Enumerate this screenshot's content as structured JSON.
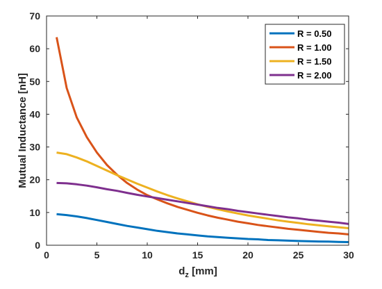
{
  "chart_data": {
    "type": "line",
    "xlabel_main": "d",
    "xlabel_sub": "z",
    "xlabel_unit": " [mm]",
    "ylabel": "Mutual Inductance [nH]",
    "xlim": [
      0,
      30
    ],
    "ylim": [
      0,
      70
    ],
    "xticks": [
      0,
      5,
      10,
      15,
      20,
      25,
      30
    ],
    "yticks": [
      0,
      10,
      20,
      30,
      40,
      50,
      60,
      70
    ],
    "grid": false,
    "legend_position": "top-right",
    "x": [
      1,
      2,
      3,
      4,
      5,
      6,
      7,
      8,
      9,
      10,
      11,
      12,
      13,
      14,
      15,
      16,
      17,
      18,
      19,
      20,
      21,
      22,
      23,
      24,
      25,
      26,
      27,
      28,
      29,
      30
    ],
    "series": [
      {
        "name": "R = 0.50",
        "color": "#0072BD",
        "values": [
          9.5,
          9.2,
          8.8,
          8.3,
          7.7,
          7.1,
          6.5,
          5.9,
          5.4,
          4.9,
          4.4,
          4.0,
          3.6,
          3.3,
          3.0,
          2.7,
          2.5,
          2.3,
          2.1,
          1.9,
          1.8,
          1.6,
          1.5,
          1.4,
          1.3,
          1.2,
          1.15,
          1.1,
          1.0,
          0.95
        ]
      },
      {
        "name": "R = 1.00",
        "color": "#D95319",
        "values": [
          63.5,
          48.0,
          39.0,
          33.0,
          28.3,
          24.5,
          21.5,
          19.0,
          17.0,
          15.3,
          14.0,
          12.8,
          11.7,
          10.8,
          9.9,
          9.1,
          8.4,
          7.8,
          7.2,
          6.7,
          6.2,
          5.8,
          5.4,
          5.0,
          4.7,
          4.4,
          4.1,
          3.8,
          3.6,
          3.3
        ]
      },
      {
        "name": "R = 1.50",
        "color": "#EDB120",
        "values": [
          28.3,
          27.8,
          26.8,
          25.6,
          24.2,
          22.8,
          21.4,
          20.1,
          18.8,
          17.6,
          16.4,
          15.3,
          14.3,
          13.4,
          12.5,
          11.7,
          11.0,
          10.3,
          9.7,
          9.1,
          8.6,
          8.1,
          7.6,
          7.2,
          6.8,
          6.4,
          6.1,
          5.8,
          5.5,
          5.2
        ]
      },
      {
        "name": "R = 2.00",
        "color": "#7E2F8E",
        "values": [
          19.0,
          18.9,
          18.6,
          18.2,
          17.7,
          17.1,
          16.6,
          16.0,
          15.4,
          14.9,
          14.4,
          13.9,
          13.4,
          12.9,
          12.4,
          11.9,
          11.4,
          11.0,
          10.5,
          10.1,
          9.7,
          9.3,
          8.9,
          8.5,
          8.2,
          7.8,
          7.5,
          7.2,
          6.9,
          6.5
        ]
      }
    ]
  }
}
